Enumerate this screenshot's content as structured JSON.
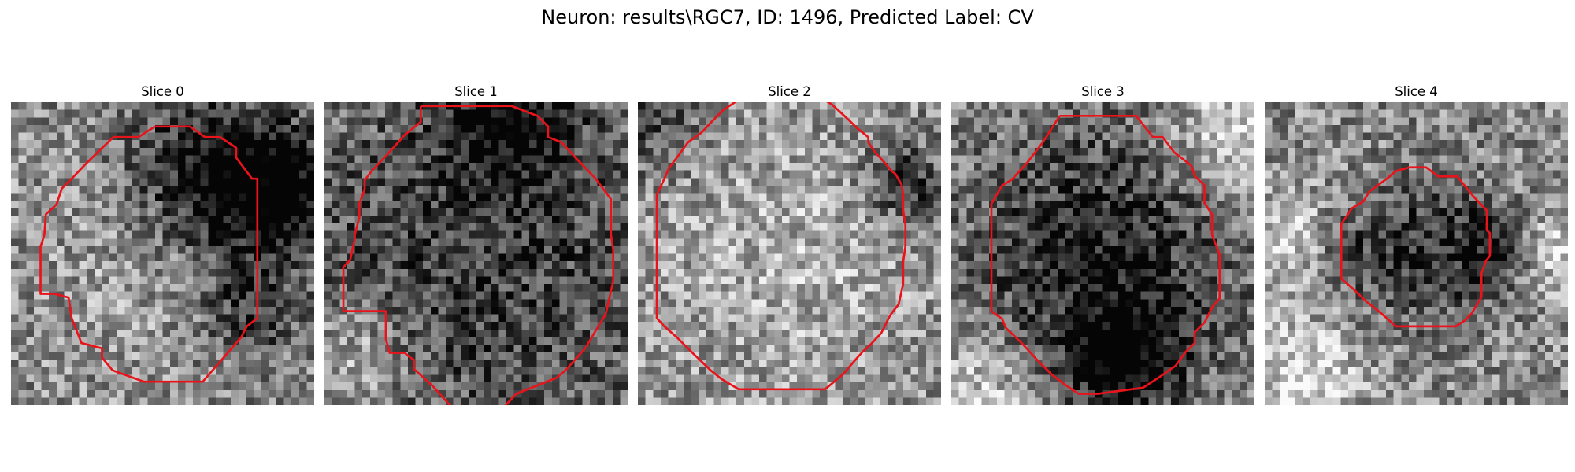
{
  "figure": {
    "title": "Neuron: results\\RGC7, ID: 1496, Predicted Label: CV",
    "contour_color": "#e8141b",
    "panels": [
      {
        "title": "Slice 0",
        "contour": [
          [
            19,
            3.2
          ],
          [
            23.6,
            3.2
          ],
          [
            25.6,
            4.6
          ],
          [
            27.6,
            4.6
          ],
          [
            29.7,
            6
          ],
          [
            29.7,
            7.3
          ],
          [
            31.8,
            10.1
          ],
          [
            32.5,
            10.1
          ],
          [
            32.5,
            28.5
          ],
          [
            31.1,
            29.6
          ],
          [
            30.4,
            31
          ],
          [
            25.3,
            36.9
          ],
          [
            17.5,
            36.9
          ],
          [
            13.4,
            35.4
          ],
          [
            12,
            33.7
          ],
          [
            12,
            32.5
          ],
          [
            9.3,
            31.8
          ],
          [
            8,
            28.5
          ],
          [
            7.6,
            25.8
          ],
          [
            5.8,
            25.3
          ],
          [
            3.9,
            25.3
          ],
          [
            3.9,
            20.4
          ],
          [
            3.9,
            19.1
          ],
          [
            4.4,
            17.5
          ],
          [
            4.6,
            14.8
          ],
          [
            6,
            13.5
          ],
          [
            6.7,
            11.4
          ],
          [
            8,
            10.1
          ],
          [
            10,
            8
          ],
          [
            13.5,
            4.6
          ],
          [
            14.8,
            4.6
          ],
          [
            16.8,
            4.6
          ],
          [
            19,
            3.2
          ]
        ]
      },
      {
        "title": "Slice 1",
        "contour": [
          [
            12.7,
            0.5
          ],
          [
            24.7,
            0.5
          ],
          [
            28.1,
            1.8
          ],
          [
            29.5,
            3.2
          ],
          [
            29.5,
            4.6
          ],
          [
            31.3,
            5.3
          ],
          [
            33.1,
            7.3
          ],
          [
            35.7,
            10
          ],
          [
            37.8,
            12.8
          ],
          [
            37.8,
            17.5
          ],
          [
            38.1,
            19.5
          ],
          [
            38.1,
            23.6
          ],
          [
            37.1,
            28
          ],
          [
            36,
            29.8
          ],
          [
            34.4,
            32.5
          ],
          [
            31.8,
            35.4
          ],
          [
            30.6,
            36.4
          ],
          [
            25.3,
            38.5
          ],
          [
            21.6,
            42.5
          ],
          "break",
          [
            17.8,
            41.4
          ],
          [
            14.3,
            37.5
          ],
          [
            13.2,
            36.5
          ],
          [
            11.8,
            35.2
          ],
          [
            11.8,
            34
          ],
          [
            11.3,
            33.7
          ],
          [
            10.6,
            33.1
          ],
          [
            8.6,
            33.1
          ],
          [
            8.1,
            31.3
          ],
          [
            8.1,
            27.6
          ],
          [
            6.7,
            27.6
          ],
          [
            2.5,
            27.6
          ],
          [
            2.5,
            21.8
          ],
          [
            3.4,
            20.8
          ],
          [
            4,
            18
          ],
          [
            4,
            17.5
          ],
          [
            4.6,
            15.2
          ],
          [
            4.6,
            13.4
          ],
          [
            5.3,
            11.5
          ],
          [
            5.3,
            10.3
          ],
          [
            6.3,
            9
          ],
          [
            8.2,
            7
          ],
          [
            10.6,
            4.3
          ],
          [
            12.7,
            2.6
          ],
          [
            12.7,
            0.5
          ]
        ]
      },
      {
        "title": "Slice 2",
        "contour": [
          [
            13.4,
            -0.4
          ],
          [
            24.5,
            -0.4
          ],
          [
            25.6,
            0.3
          ],
          [
            26.7,
            1.3
          ],
          [
            28.1,
            2.6
          ],
          [
            28.9,
            3.4
          ],
          [
            30.4,
            4.6
          ],
          [
            30.4,
            5.3
          ],
          [
            31.3,
            6.6
          ],
          [
            32.4,
            7.8
          ],
          [
            33.5,
            9.1
          ],
          [
            34,
            9.5
          ],
          [
            34.8,
            10.9
          ],
          [
            35,
            12.2
          ],
          [
            35,
            14.2
          ],
          [
            35.3,
            16.2
          ],
          [
            35.3,
            19
          ],
          [
            35,
            21.1
          ],
          [
            35,
            24
          ],
          [
            34.4,
            26.7
          ],
          [
            33.6,
            27.7
          ],
          [
            33.2,
            28.3
          ],
          [
            32.1,
            30.5
          ],
          [
            30.6,
            32.1
          ],
          [
            29.6,
            33
          ],
          [
            28.8,
            33.9
          ],
          [
            27.1,
            35.9
          ],
          [
            24.7,
            37.9
          ],
          [
            13.3,
            37.9
          ],
          [
            11.1,
            36.6
          ],
          [
            9.6,
            35.4
          ],
          [
            7.2,
            33.1
          ],
          [
            5.3,
            31.2
          ],
          [
            3.4,
            29.5
          ],
          [
            2.5,
            28.5
          ],
          [
            2.5,
            26.4
          ],
          [
            2.5,
            21
          ],
          [
            2.5,
            14.8
          ],
          [
            2.5,
            12.2
          ],
          [
            3.4,
            10.3
          ],
          [
            4.1,
            8.7
          ],
          [
            5.3,
            7.1
          ],
          [
            6.6,
            5.3
          ],
          [
            8.4,
            4
          ],
          [
            9.7,
            2.6
          ],
          [
            11.3,
            1
          ],
          [
            13.4,
            -0.4
          ]
        ]
      },
      {
        "title": "Slice 3",
        "contour": [
          [
            14.3,
            1.8
          ],
          [
            24.4,
            1.8
          ],
          [
            26.6,
            4.6
          ],
          [
            27.9,
            4.6
          ],
          [
            29.4,
            6.6
          ],
          [
            31.7,
            8.4
          ],
          [
            32.1,
            9.7
          ],
          [
            33.4,
            11
          ],
          [
            33.4,
            13.3
          ],
          [
            34.4,
            14.8
          ],
          [
            34.4,
            17.5
          ],
          [
            35.4,
            20.1
          ],
          [
            35.4,
            22.2
          ],
          [
            35.4,
            25.9
          ],
          [
            34.4,
            27.1
          ],
          [
            33.4,
            29.1
          ],
          [
            32.1,
            30.4
          ],
          [
            32.1,
            31.8
          ],
          [
            30.9,
            33
          ],
          [
            29.6,
            34.8
          ],
          [
            27.3,
            36.4
          ],
          [
            25.3,
            37.7
          ],
          [
            19.3,
            38.5
          ],
          [
            16.8,
            38.5
          ],
          [
            15,
            37.3
          ],
          [
            13.3,
            36
          ],
          [
            11.3,
            34
          ],
          [
            9.3,
            31.8
          ],
          [
            7.2,
            29.8
          ],
          [
            6.7,
            28.6
          ],
          [
            5.3,
            27.6
          ],
          [
            5.3,
            22.2
          ],
          [
            5.3,
            13.4
          ],
          [
            6.7,
            11
          ],
          [
            8,
            10.2
          ],
          [
            10,
            8
          ],
          [
            12,
            5.4
          ],
          [
            14.3,
            1.8
          ]
        ]
      },
      {
        "title": "Slice 4",
        "contour": [
          [
            19.1,
            8.6
          ],
          [
            21.3,
            8.6
          ],
          [
            22.9,
            9.8
          ],
          [
            25.4,
            9.8
          ],
          [
            27.5,
            12.4
          ],
          [
            29.3,
            14.3
          ],
          [
            29.3,
            16.9
          ],
          [
            29.7,
            17.3
          ],
          [
            29.7,
            20.3
          ],
          [
            29.2,
            20.9
          ],
          [
            28.6,
            22.6
          ],
          [
            28.6,
            25.7
          ],
          [
            27.3,
            27.9
          ],
          [
            26.3,
            28.9
          ],
          [
            25.2,
            29.6
          ],
          [
            22.4,
            29.6
          ],
          [
            20.4,
            29.6
          ],
          [
            17.3,
            29.6
          ],
          [
            15.3,
            27.8
          ],
          [
            13.4,
            26.3
          ],
          [
            11.6,
            24.6
          ],
          [
            10.1,
            23.3
          ],
          [
            10.1,
            19.3
          ],
          [
            10.1,
            16.1
          ],
          [
            11.5,
            14
          ],
          [
            13,
            13.1
          ],
          [
            13.8,
            11.8
          ],
          [
            16.1,
            10.1
          ],
          [
            17.3,
            9.1
          ],
          [
            19.1,
            8.6
          ]
        ]
      }
    ]
  }
}
